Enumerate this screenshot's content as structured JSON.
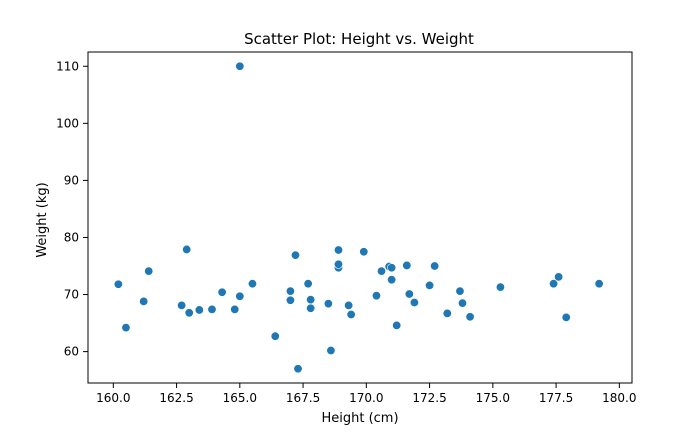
{
  "chart_data": {
    "type": "scatter",
    "title": "Scatter Plot: Height vs. Weight",
    "xlabel": "Height (cm)",
    "ylabel": "Weight (kg)",
    "xlim": [
      159.0,
      180.5
    ],
    "ylim": [
      54.5,
      112.5
    ],
    "xticks": [
      160.0,
      162.5,
      165.0,
      167.5,
      170.0,
      172.5,
      175.0,
      177.5,
      180.0
    ],
    "xtick_labels": [
      "160.0",
      "162.5",
      "165.0",
      "167.5",
      "170.0",
      "172.5",
      "175.0",
      "177.5",
      "180.0"
    ],
    "yticks": [
      60,
      70,
      80,
      90,
      100,
      110
    ],
    "ytick_labels": [
      "60",
      "70",
      "80",
      "90",
      "100",
      "110"
    ],
    "grid": false,
    "color": "#1f77b4",
    "points": [
      [
        160.2,
        71.8
      ],
      [
        160.5,
        64.2
      ],
      [
        161.2,
        68.8
      ],
      [
        161.4,
        74.1
      ],
      [
        162.7,
        68.1
      ],
      [
        162.9,
        77.9
      ],
      [
        163.0,
        66.8
      ],
      [
        163.4,
        67.3
      ],
      [
        163.9,
        67.4
      ],
      [
        164.3,
        70.4
      ],
      [
        164.8,
        67.4
      ],
      [
        165.0,
        110.0
      ],
      [
        165.0,
        69.7
      ],
      [
        165.5,
        71.9
      ],
      [
        166.4,
        62.7
      ],
      [
        167.0,
        70.6
      ],
      [
        167.0,
        69.0
      ],
      [
        167.2,
        76.9
      ],
      [
        167.3,
        57.0
      ],
      [
        167.7,
        71.9
      ],
      [
        167.8,
        69.1
      ],
      [
        167.8,
        67.6
      ],
      [
        168.5,
        68.4
      ],
      [
        168.6,
        60.2
      ],
      [
        168.9,
        77.8
      ],
      [
        168.9,
        74.7
      ],
      [
        168.9,
        75.3
      ],
      [
        169.3,
        68.1
      ],
      [
        169.4,
        66.5
      ],
      [
        169.9,
        77.5
      ],
      [
        170.4,
        69.8
      ],
      [
        170.6,
        74.1
      ],
      [
        170.9,
        74.9
      ],
      [
        171.0,
        72.6
      ],
      [
        171.0,
        74.7
      ],
      [
        171.2,
        64.6
      ],
      [
        171.6,
        75.1
      ],
      [
        171.7,
        70.1
      ],
      [
        171.9,
        68.6
      ],
      [
        172.5,
        71.6
      ],
      [
        172.7,
        75.0
      ],
      [
        173.2,
        66.7
      ],
      [
        173.7,
        70.6
      ],
      [
        173.8,
        68.5
      ],
      [
        174.1,
        66.1
      ],
      [
        175.3,
        71.3
      ],
      [
        177.4,
        71.9
      ],
      [
        177.6,
        73.1
      ],
      [
        177.9,
        66.0
      ],
      [
        179.2,
        71.9
      ]
    ]
  }
}
